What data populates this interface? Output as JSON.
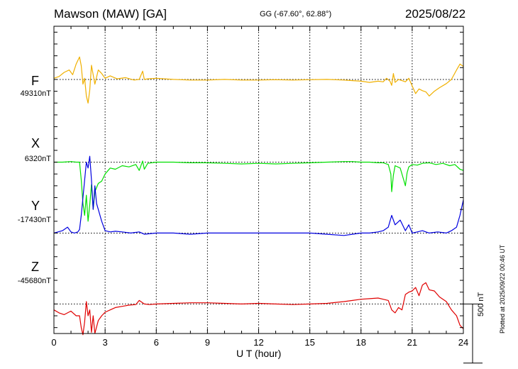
{
  "header": {
    "station": "Mawson (MAW)  [GA]",
    "coords": "GG (-67.60°,  62.88°)",
    "date": "2025/08/22"
  },
  "plotted_note": "Plotted at 2025/09/22 00:46 UT",
  "scale_bar": {
    "label": "500 nT",
    "value_nT": 500
  },
  "colors": {
    "F": "#f0b000",
    "X": "#00e000",
    "Y": "#0000e0",
    "Z": "#e00000",
    "axis": "#000000"
  },
  "chart_data": {
    "type": "line",
    "title": "Mawson (MAW) [GA] 2025/08/22",
    "xlabel": "U T (hour)",
    "xlim": [
      0,
      24
    ],
    "x_ticks": [
      "0",
      "3",
      "6",
      "9",
      "12",
      "15",
      "18",
      "21",
      "24"
    ],
    "grid": "dotted vertical every 3 hours, dotted horizontal at each baseline",
    "y_units": "nT relative to baseline",
    "ylim_nT": [
      -1150,
      1450
    ],
    "series": [
      {
        "name": "F",
        "baseline_label": "49310nT",
        "baseline_nT": 1000,
        "x": [
          0,
          0.3,
          0.6,
          0.9,
          1.1,
          1.3,
          1.5,
          1.6,
          1.7,
          1.8,
          1.9,
          2.0,
          2.1,
          2.2,
          2.3,
          2.4,
          2.6,
          2.8,
          3.0,
          3.3,
          3.7,
          4.2,
          4.7,
          5.0,
          5.2,
          5.3,
          5.5,
          6,
          7,
          8,
          9,
          10,
          11,
          12,
          13,
          14,
          15,
          16,
          17,
          17.5,
          18,
          18.5,
          19,
          19.3,
          19.5,
          19.7,
          19.8,
          19.9,
          20.0,
          20.2,
          20.4,
          20.6,
          20.8,
          21.0,
          21.2,
          21.4,
          21.6,
          21.8,
          22.0,
          22.3,
          22.6,
          23.0,
          23.3,
          23.6,
          23.8,
          24
        ],
        "y": [
          1010,
          1025,
          1060,
          1080,
          1040,
          1130,
          1190,
          1115,
          960,
          1010,
          860,
          800,
          910,
          1120,
          1040,
          960,
          1080,
          1050,
          1010,
          1030,
          1005,
          1015,
          995,
          1000,
          1070,
          1000,
          1005,
          1010,
          1000,
          995,
          995,
          1000,
          995,
          995,
          998,
          995,
          998,
          1000,
          995,
          990,
          985,
          975,
          985,
          980,
          1010,
          985,
          950,
          1050,
          975,
          1000,
          990,
          980,
          1010,
          945,
          880,
          920,
          905,
          895,
          860,
          900,
          930,
          965,
          1000,
          1080,
          1130,
          1110
        ]
      },
      {
        "name": "X",
        "baseline_label": "6320nT",
        "baseline_nT": 300,
        "x": [
          0,
          0.5,
          1.0,
          1.3,
          1.5,
          1.6,
          1.7,
          1.8,
          1.9,
          2.0,
          2.1,
          2.2,
          2.3,
          2.4,
          2.6,
          2.8,
          3.0,
          3.3,
          3.6,
          4.0,
          4.4,
          4.8,
          5.0,
          5.2,
          5.3,
          5.5,
          6,
          7,
          8,
          9,
          10,
          11,
          12,
          13,
          14,
          15,
          16,
          17,
          17.5,
          18,
          18.5,
          19,
          19.3,
          19.6,
          19.75,
          19.8,
          19.9,
          20.0,
          20.3,
          20.5,
          20.6,
          20.7,
          20.8,
          21.0,
          21.3,
          21.6,
          22.0,
          22.4,
          22.8,
          23.2,
          23.5,
          23.8,
          24
        ],
        "y": [
          300,
          300,
          305,
          300,
          300,
          150,
          -50,
          -150,
          20,
          -200,
          -60,
          110,
          -100,
          50,
          120,
          140,
          200,
          250,
          240,
          270,
          260,
          280,
          230,
          310,
          240,
          290,
          300,
          300,
          295,
          295,
          290,
          285,
          290,
          285,
          290,
          295,
          300,
          305,
          305,
          300,
          300,
          295,
          295,
          280,
          200,
          50,
          190,
          270,
          250,
          150,
          100,
          210,
          260,
          280,
          275,
          290,
          295,
          280,
          290,
          270,
          280,
          240,
          230
        ]
      },
      {
        "name": "Y",
        "baseline_label": "-17430nT",
        "baseline_nT": -300,
        "x": [
          0,
          0.5,
          0.8,
          1.0,
          1.2,
          1.4,
          1.5,
          1.6,
          1.7,
          1.8,
          1.9,
          2.0,
          2.1,
          2.2,
          2.3,
          2.4,
          2.5,
          2.6,
          2.8,
          3.0,
          3.3,
          3.6,
          4.0,
          4.5,
          5.0,
          5.3,
          6,
          7,
          8,
          9,
          10,
          11,
          12,
          13,
          14,
          15,
          16,
          17,
          17.5,
          18,
          18.5,
          19,
          19.3,
          19.6,
          19.8,
          20.0,
          20.3,
          20.6,
          20.8,
          21.0,
          21.3,
          21.6,
          22,
          22.5,
          23,
          23.3,
          23.6,
          23.8,
          24
        ],
        "y": [
          -300,
          -280,
          -250,
          -290,
          -300,
          -290,
          -270,
          -150,
          0,
          150,
          300,
          250,
          350,
          150,
          -100,
          100,
          -50,
          -100,
          -200,
          -280,
          -290,
          -285,
          -290,
          -300,
          -290,
          -310,
          -300,
          -300,
          -310,
          -300,
          -300,
          -300,
          -300,
          -300,
          -300,
          -300,
          -310,
          -320,
          -310,
          -300,
          -300,
          -290,
          -280,
          -250,
          -150,
          -230,
          -190,
          -280,
          -230,
          -300,
          -290,
          -280,
          -300,
          -290,
          -300,
          -280,
          -250,
          -150,
          -20
        ]
      },
      {
        "name": "Z",
        "baseline_label": "-45680nT",
        "baseline_nT": -900,
        "x": [
          0,
          0.3,
          0.6,
          1.0,
          1.3,
          1.5,
          1.6,
          1.7,
          1.8,
          1.9,
          2.0,
          2.1,
          2.2,
          2.3,
          2.4,
          2.6,
          2.8,
          3.0,
          3.3,
          3.6,
          4.0,
          4.4,
          4.8,
          5.0,
          5.3,
          5.6,
          6,
          7,
          8,
          9,
          10,
          11,
          12,
          13,
          14,
          15,
          16,
          17,
          17.5,
          18,
          18.5,
          19,
          19.3,
          19.6,
          19.8,
          20.0,
          20.2,
          20.4,
          20.6,
          20.8,
          21.0,
          21.2,
          21.4,
          21.6,
          21.8,
          22.0,
          22.3,
          22.6,
          23.0,
          23.3,
          23.6,
          23.8,
          24
        ],
        "y": [
          -950,
          -975,
          -990,
          -960,
          -1000,
          -1000,
          -1100,
          -1160,
          -1050,
          -880,
          -1000,
          -950,
          -1140,
          -1000,
          -1150,
          -1040,
          -1000,
          -970,
          -950,
          -930,
          -920,
          -910,
          -905,
          -870,
          -900,
          -905,
          -900,
          -895,
          -890,
          -890,
          -895,
          -900,
          -895,
          -900,
          -905,
          -900,
          -895,
          -880,
          -870,
          -860,
          -855,
          -850,
          -860,
          -870,
          -950,
          -975,
          -930,
          -950,
          -820,
          -800,
          -790,
          -760,
          -830,
          -740,
          -720,
          -780,
          -790,
          -840,
          -880,
          -950,
          -1000,
          -1080,
          -1110
        ]
      }
    ]
  }
}
